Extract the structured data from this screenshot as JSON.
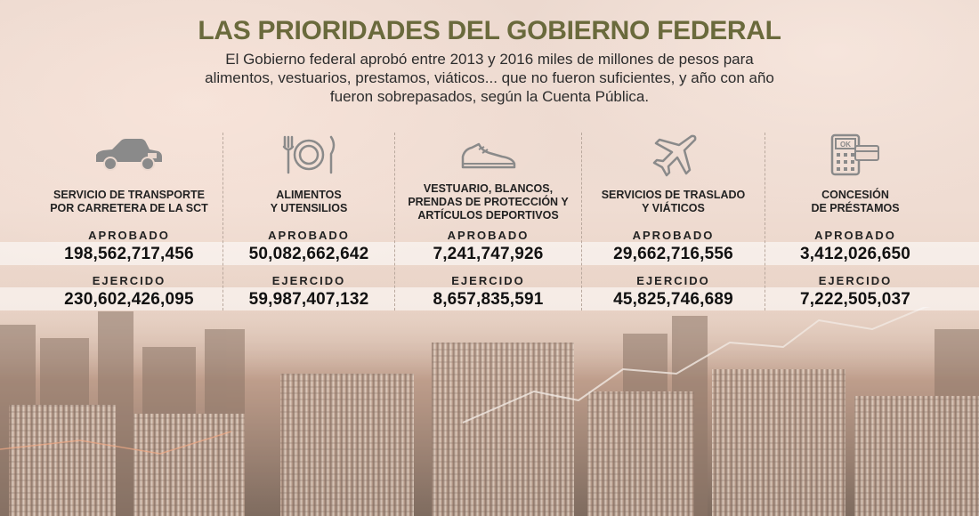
{
  "header": {
    "title": "LAS PRIORIDADES DEL GOBIERNO FEDERAL",
    "subtitle": "El Gobierno federal aprobó entre 2013 y 2016 miles de millones de pesos para alimentos, vestuarios, prestamos, viáticos... que no fueron suficientes, y año con año fueron sobrepasados, según la Cuenta Pública."
  },
  "labels": {
    "approved": "APROBADO",
    "spent": "EJERCIDO"
  },
  "items": [
    {
      "icon": "car-icon",
      "category": "SERVICIO DE TRANSPORTE\nPOR CARRETERA DE LA SCT",
      "approved": "198,562,717,456",
      "spent": "230,602,426,095"
    },
    {
      "icon": "utensils-icon",
      "category": "ALIMENTOS\nY UTENSILIOS",
      "approved": "50,082,662,642",
      "spent": "59,987,407,132"
    },
    {
      "icon": "sneaker-icon",
      "category": "VESTUARIO, BLANCOS,\nPRENDAS DE PROTECCIÓN Y\nARTÍCULOS DEPORTIVOS",
      "approved": "7,241,747,926",
      "spent": "8,657,835,591"
    },
    {
      "icon": "airplane-icon",
      "category": "SERVICIOS DE TRASLADO\nY VIÁTICOS",
      "approved": "29,662,716,556",
      "spent": "45,825,746,689"
    },
    {
      "icon": "pos-terminal-icon",
      "category": "CONCESIÓN\nDE PRÉSTAMOS",
      "approved": "3,412,026,650",
      "spent": "7,222,505,037"
    }
  ],
  "colors": {
    "title": "#6a6a3c",
    "icon": "#8a8a8a",
    "text": "#222222"
  }
}
